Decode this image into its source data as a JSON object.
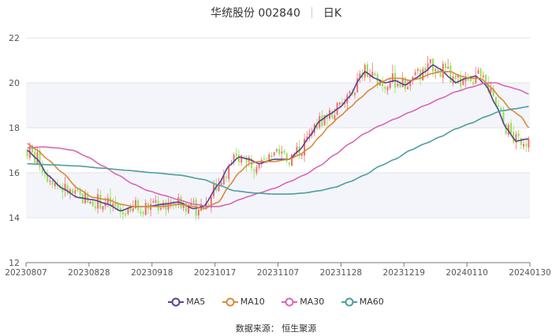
{
  "header": {
    "stock": "华统股份 002840",
    "period": "日K"
  },
  "source": "数据来源： 恒生聚源",
  "chart_data": {
    "type": "candlestick",
    "ylim": [
      12,
      22
    ],
    "yticks": [
      12,
      14,
      16,
      18,
      20,
      22
    ],
    "xticks": [
      "20230807",
      "20230828",
      "20230918",
      "20231017",
      "20231107",
      "20231128",
      "20231219",
      "20240110",
      "20240130"
    ],
    "colors": {
      "up": "#f26d6d",
      "down": "#8fe34e",
      "ma5": "#5a3f8f",
      "ma10": "#d9893b",
      "ma30": "#d966b4",
      "ma60": "#4c9ea0"
    },
    "legend": [
      "MA5",
      "MA10",
      "MA30",
      "MA60"
    ],
    "series": [
      {
        "name": "MA5",
        "anchors": [
          [
            0,
            17.0
          ],
          [
            4,
            16.6
          ],
          [
            8,
            15.9
          ],
          [
            14,
            15.3
          ],
          [
            20,
            14.9
          ],
          [
            26,
            14.8
          ],
          [
            32,
            14.6
          ],
          [
            37,
            14.3
          ],
          [
            42,
            14.5
          ],
          [
            48,
            14.5
          ],
          [
            54,
            14.6
          ],
          [
            60,
            14.7
          ],
          [
            66,
            14.4
          ],
          [
            70,
            14.5
          ],
          [
            76,
            15.5
          ],
          [
            80,
            16.3
          ],
          [
            84,
            16.7
          ],
          [
            88,
            16.6
          ],
          [
            92,
            16.4
          ],
          [
            98,
            16.6
          ],
          [
            104,
            16.6
          ],
          [
            108,
            17.0
          ],
          [
            112,
            17.6
          ],
          [
            116,
            18.3
          ],
          [
            120,
            18.6
          ],
          [
            124,
            18.9
          ],
          [
            128,
            19.4
          ],
          [
            132,
            20.2
          ],
          [
            134,
            20.5
          ],
          [
            138,
            20.2
          ],
          [
            142,
            20.0
          ],
          [
            146,
            20.1
          ],
          [
            150,
            19.9
          ],
          [
            154,
            20.2
          ],
          [
            158,
            20.5
          ],
          [
            161,
            20.8
          ],
          [
            164,
            20.6
          ],
          [
            168,
            20.2
          ],
          [
            170,
            20.0
          ],
          [
            174,
            20.2
          ],
          [
            178,
            20.3
          ],
          [
            182,
            19.9
          ],
          [
            186,
            19.0
          ],
          [
            190,
            18.0
          ],
          [
            194,
            17.4
          ],
          [
            198,
            17.5
          ],
          [
            199,
            17.5
          ]
        ]
      },
      {
        "name": "MA10",
        "anchors": [
          [
            0,
            17.3
          ],
          [
            4,
            17.0
          ],
          [
            8,
            16.6
          ],
          [
            14,
            16.0
          ],
          [
            20,
            15.3
          ],
          [
            26,
            14.9
          ],
          [
            32,
            14.8
          ],
          [
            37,
            14.6
          ],
          [
            42,
            14.5
          ],
          [
            48,
            14.5
          ],
          [
            54,
            14.5
          ],
          [
            60,
            14.6
          ],
          [
            66,
            14.5
          ],
          [
            70,
            14.4
          ],
          [
            76,
            14.7
          ],
          [
            80,
            15.4
          ],
          [
            84,
            16.0
          ],
          [
            88,
            16.4
          ],
          [
            92,
            16.5
          ],
          [
            98,
            16.5
          ],
          [
            104,
            16.6
          ],
          [
            108,
            16.8
          ],
          [
            112,
            17.1
          ],
          [
            116,
            17.6
          ],
          [
            120,
            18.1
          ],
          [
            124,
            18.5
          ],
          [
            128,
            18.9
          ],
          [
            132,
            19.3
          ],
          [
            136,
            19.7
          ],
          [
            140,
            20.0
          ],
          [
            144,
            20.2
          ],
          [
            148,
            20.2
          ],
          [
            152,
            20.1
          ],
          [
            156,
            20.2
          ],
          [
            160,
            20.4
          ],
          [
            164,
            20.5
          ],
          [
            168,
            20.5
          ],
          [
            172,
            20.3
          ],
          [
            176,
            20.2
          ],
          [
            180,
            20.2
          ],
          [
            184,
            19.8
          ],
          [
            188,
            19.3
          ],
          [
            192,
            18.8
          ],
          [
            196,
            18.5
          ],
          [
            199,
            18.0
          ]
        ]
      },
      {
        "name": "MA30",
        "anchors": [
          [
            0,
            17.1
          ],
          [
            6,
            17.15
          ],
          [
            12,
            17.1
          ],
          [
            18,
            17.0
          ],
          [
            24,
            16.7
          ],
          [
            30,
            16.3
          ],
          [
            36,
            15.9
          ],
          [
            42,
            15.5
          ],
          [
            48,
            15.2
          ],
          [
            54,
            15.0
          ],
          [
            60,
            14.8
          ],
          [
            66,
            14.6
          ],
          [
            72,
            14.5
          ],
          [
            76,
            14.5
          ],
          [
            80,
            14.6
          ],
          [
            84,
            14.8
          ],
          [
            88,
            14.95
          ],
          [
            92,
            15.1
          ],
          [
            98,
            15.3
          ],
          [
            104,
            15.6
          ],
          [
            110,
            15.9
          ],
          [
            116,
            16.3
          ],
          [
            122,
            16.8
          ],
          [
            128,
            17.3
          ],
          [
            134,
            17.75
          ],
          [
            140,
            18.1
          ],
          [
            146,
            18.4
          ],
          [
            152,
            18.7
          ],
          [
            158,
            19.0
          ],
          [
            164,
            19.3
          ],
          [
            170,
            19.6
          ],
          [
            176,
            19.8
          ],
          [
            182,
            20.0
          ],
          [
            186,
            20.0
          ],
          [
            190,
            19.85
          ],
          [
            195,
            19.7
          ],
          [
            199,
            19.5
          ]
        ]
      },
      {
        "name": "MA60",
        "anchors": [
          [
            0,
            16.4
          ],
          [
            10,
            16.35
          ],
          [
            20,
            16.3
          ],
          [
            30,
            16.2
          ],
          [
            40,
            16.1
          ],
          [
            50,
            16.0
          ],
          [
            60,
            15.9
          ],
          [
            70,
            15.7
          ],
          [
            76,
            15.45
          ],
          [
            82,
            15.2
          ],
          [
            90,
            15.1
          ],
          [
            98,
            15.05
          ],
          [
            104,
            15.05
          ],
          [
            110,
            15.1
          ],
          [
            116,
            15.2
          ],
          [
            122,
            15.35
          ],
          [
            128,
            15.6
          ],
          [
            134,
            15.9
          ],
          [
            140,
            16.3
          ],
          [
            146,
            16.6
          ],
          [
            152,
            17.0
          ],
          [
            158,
            17.3
          ],
          [
            164,
            17.6
          ],
          [
            170,
            17.95
          ],
          [
            176,
            18.2
          ],
          [
            182,
            18.5
          ],
          [
            188,
            18.75
          ],
          [
            194,
            18.85
          ],
          [
            199,
            18.95
          ]
        ]
      }
    ]
  }
}
